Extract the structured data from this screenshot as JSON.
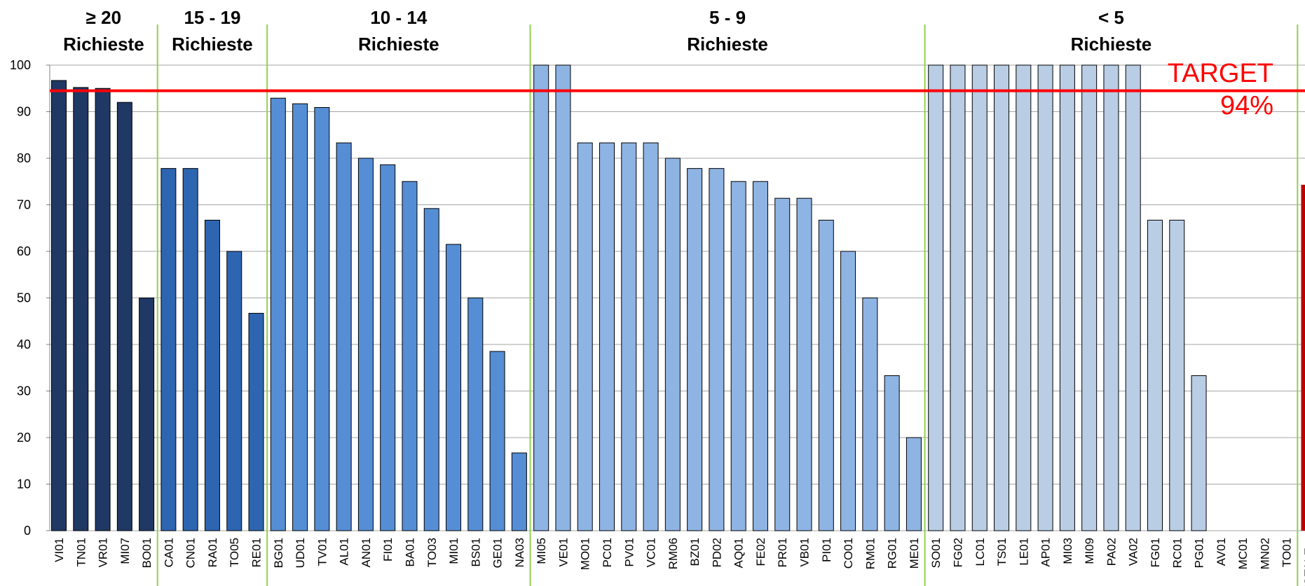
{
  "chart_data": {
    "type": "bar",
    "title": "",
    "xlabel": "",
    "ylabel": "",
    "ylim": [
      0,
      100
    ],
    "yticks": [
      0,
      10,
      20,
      30,
      40,
      50,
      60,
      70,
      80,
      90,
      100
    ],
    "grid": true,
    "target": {
      "value": 94.5,
      "label_line1": "TARGET",
      "label_line2": "94%",
      "color": "#ff0000"
    },
    "groups": [
      {
        "label_line1": "≥ 20",
        "label_line2": "Richieste",
        "color": "#1f3864"
      },
      {
        "label_line1": "15 - 19",
        "label_line2": "Richieste",
        "color": "#2e65b1"
      },
      {
        "label_line1": "10 - 14",
        "label_line2": "Richieste",
        "color": "#558ed5"
      },
      {
        "label_line1": "5 - 9",
        "label_line2": "Richieste",
        "color": "#8eb4e3"
      },
      {
        "label_line1": "< 5",
        "label_line2": "Richieste",
        "color": "#b9cde5"
      }
    ],
    "totale_color": "#c00000",
    "bars": [
      {
        "label": "VI01",
        "value": 96.7,
        "group": 0
      },
      {
        "label": "TN01",
        "value": 95.2,
        "group": 0
      },
      {
        "label": "VR01",
        "value": 95.0,
        "group": 0
      },
      {
        "label": "MI07",
        "value": 92.0,
        "group": 0
      },
      {
        "label": "BO01",
        "value": 50.0,
        "group": 0
      },
      {
        "label": "CA01",
        "value": 77.8,
        "group": 1
      },
      {
        "label": "CN01",
        "value": 77.8,
        "group": 1
      },
      {
        "label": "RA01",
        "value": 66.7,
        "group": 1
      },
      {
        "label": "TO05",
        "value": 60.0,
        "group": 1
      },
      {
        "label": "RE01",
        "value": 46.7,
        "group": 1
      },
      {
        "label": "BG01",
        "value": 92.9,
        "group": 2
      },
      {
        "label": "UD01",
        "value": 91.7,
        "group": 2
      },
      {
        "label": "TV01",
        "value": 90.9,
        "group": 2
      },
      {
        "label": "AL01",
        "value": 83.3,
        "group": 2
      },
      {
        "label": "AN01",
        "value": 80.0,
        "group": 2
      },
      {
        "label": "FI01",
        "value": 78.6,
        "group": 2
      },
      {
        "label": "BA01",
        "value": 75.0,
        "group": 2
      },
      {
        "label": "TO03",
        "value": 69.2,
        "group": 2
      },
      {
        "label": "MI01",
        "value": 61.5,
        "group": 2
      },
      {
        "label": "BS01",
        "value": 50.0,
        "group": 2
      },
      {
        "label": "GE01",
        "value": 38.5,
        "group": 2
      },
      {
        "label": "NA03",
        "value": 16.7,
        "group": 2
      },
      {
        "label": "MI05",
        "value": 100,
        "group": 3
      },
      {
        "label": "VE01",
        "value": 100,
        "group": 3
      },
      {
        "label": "MO01",
        "value": 83.3,
        "group": 3
      },
      {
        "label": "PC01",
        "value": 83.3,
        "group": 3
      },
      {
        "label": "PV01",
        "value": 83.3,
        "group": 3
      },
      {
        "label": "VC01",
        "value": 83.3,
        "group": 3
      },
      {
        "label": "RM06",
        "value": 80.0,
        "group": 3
      },
      {
        "label": "BZ01",
        "value": 77.8,
        "group": 3
      },
      {
        "label": "PD02",
        "value": 77.8,
        "group": 3
      },
      {
        "label": "AQ01",
        "value": 75.0,
        "group": 3
      },
      {
        "label": "FE02",
        "value": 75.0,
        "group": 3
      },
      {
        "label": "PR01",
        "value": 71.4,
        "group": 3
      },
      {
        "label": "VB01",
        "value": 71.4,
        "group": 3
      },
      {
        "label": "PI01",
        "value": 66.7,
        "group": 3
      },
      {
        "label": "CO01",
        "value": 60.0,
        "group": 3
      },
      {
        "label": "RM01",
        "value": 50.0,
        "group": 3
      },
      {
        "label": "RG01",
        "value": 33.3,
        "group": 3
      },
      {
        "label": "ME01",
        "value": 20.0,
        "group": 3
      },
      {
        "label": "SO01",
        "value": 100,
        "group": 4
      },
      {
        "label": "FG02",
        "value": 100,
        "group": 4
      },
      {
        "label": "LC01",
        "value": 100,
        "group": 4
      },
      {
        "label": "TS01",
        "value": 100,
        "group": 4
      },
      {
        "label": "LE01",
        "value": 100,
        "group": 4
      },
      {
        "label": "AP01",
        "value": 100,
        "group": 4
      },
      {
        "label": "MI03",
        "value": 100,
        "group": 4
      },
      {
        "label": "MI09",
        "value": 100,
        "group": 4
      },
      {
        "label": "PA02",
        "value": 100,
        "group": 4
      },
      {
        "label": "VA02",
        "value": 100,
        "group": 4
      },
      {
        "label": "FG01",
        "value": 66.7,
        "group": 4
      },
      {
        "label": "RC01",
        "value": 66.7,
        "group": 4
      },
      {
        "label": "PG01",
        "value": 33.3,
        "group": 4
      },
      {
        "label": "AV01",
        "value": 0,
        "group": 4
      },
      {
        "label": "MC01",
        "value": 0,
        "group": 4
      },
      {
        "label": "MN02",
        "value": 0,
        "group": 4
      },
      {
        "label": "TO01",
        "value": 0,
        "group": 4
      },
      {
        "label": "TOTALE...",
        "value": 74.3,
        "group": "totale"
      }
    ]
  }
}
